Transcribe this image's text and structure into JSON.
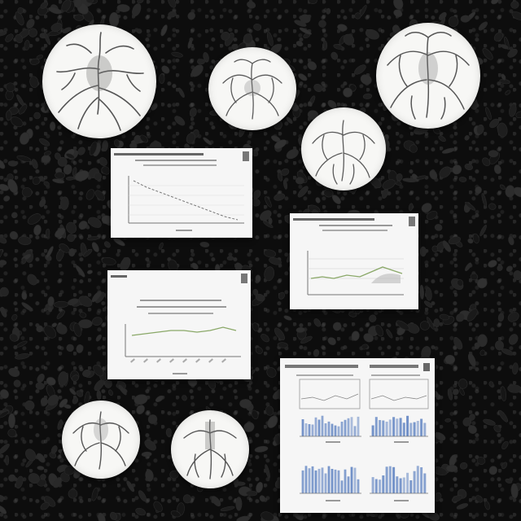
{
  "scene": {
    "background_color": "#0d0d0d",
    "paper_color": "#f6f6f6",
    "ink_color": "#4a4a4a",
    "accent_blue": "#6f8fc7",
    "accent_green": "#8aa868"
  },
  "elements": {
    "illustration_icon": "tree-root-illustration-icon",
    "document_icon": "chart-document-icon"
  }
}
